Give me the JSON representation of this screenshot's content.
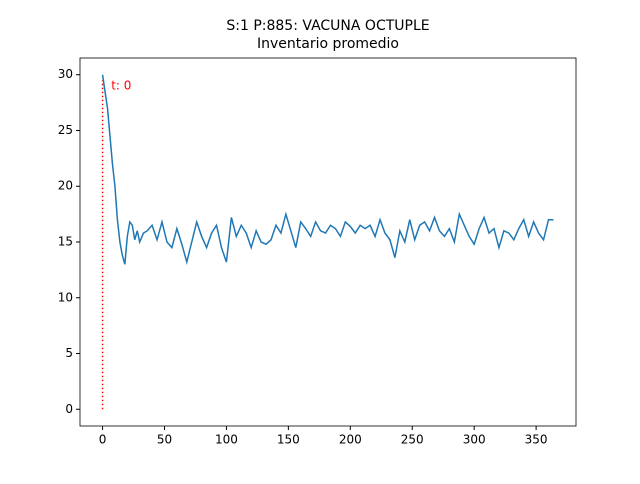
{
  "chart_data": {
    "type": "line",
    "title": "S:1 P:885: VACUNA OCTUPLE",
    "subtitle": "Inventario promedio",
    "x": [
      0,
      2,
      4,
      6,
      8,
      10,
      12,
      14,
      16,
      18,
      20,
      22,
      24,
      26,
      28,
      30,
      33,
      36,
      40,
      44,
      48,
      52,
      56,
      60,
      64,
      68,
      72,
      76,
      80,
      84,
      88,
      92,
      96,
      100,
      104,
      108,
      112,
      116,
      120,
      124,
      128,
      132,
      136,
      140,
      144,
      148,
      152,
      156,
      160,
      164,
      168,
      172,
      176,
      180,
      184,
      188,
      192,
      196,
      200,
      204,
      208,
      212,
      216,
      220,
      224,
      228,
      232,
      236,
      240,
      244,
      248,
      252,
      256,
      260,
      264,
      268,
      272,
      276,
      280,
      284,
      288,
      292,
      296,
      300,
      304,
      308,
      312,
      316,
      320,
      324,
      328,
      332,
      336,
      340,
      344,
      348,
      352,
      356,
      360,
      364
    ],
    "series": [
      {
        "color": "#1f77b4",
        "values": [
          30,
          28.5,
          27,
          24.5,
          22,
          20,
          17,
          15,
          13.8,
          13,
          15.5,
          16.8,
          16.5,
          15.2,
          16,
          15,
          15.8,
          16,
          16.5,
          15.2,
          16.8,
          15,
          14.5,
          16.2,
          14.8,
          13.2,
          15,
          16.8,
          15.5,
          14.5,
          15.8,
          16.5,
          14.5,
          13.2,
          17.2,
          15.5,
          16.5,
          15.8,
          14.5,
          16,
          15,
          14.8,
          15.2,
          16.5,
          15.8,
          17.5,
          16,
          14.5,
          16.8,
          16.2,
          15.5,
          16.8,
          16,
          15.8,
          16.5,
          16.2,
          15.5,
          16.8,
          16.4,
          15.8,
          16.5,
          16.2,
          16.5,
          15.5,
          17,
          15.8,
          15.2,
          13.6,
          16,
          15,
          17,
          15.2,
          16.5,
          16.8,
          16,
          17.2,
          16,
          15.5,
          16.2,
          15,
          17.5,
          16.5,
          15.5,
          14.8,
          16.2,
          17.2,
          15.8,
          16.2,
          14.5,
          16,
          15.8,
          15.2,
          16.2,
          17,
          15.5,
          16.8,
          15.8,
          15.2,
          17,
          17
        ]
      }
    ],
    "vline": {
      "x": 0,
      "ylim": [
        0,
        29.5
      ],
      "color": "#ff0000"
    },
    "annotation": {
      "text": "t: 0",
      "x": 7,
      "y": 29,
      "color": "#ff0000"
    },
    "xlim": [
      -18.2,
      382.2
    ],
    "ylim": [
      -1.5,
      31.5
    ],
    "xticks": [
      0,
      50,
      100,
      150,
      200,
      250,
      300,
      350
    ],
    "yticks": [
      0,
      5,
      10,
      15,
      20,
      25,
      30
    ]
  }
}
